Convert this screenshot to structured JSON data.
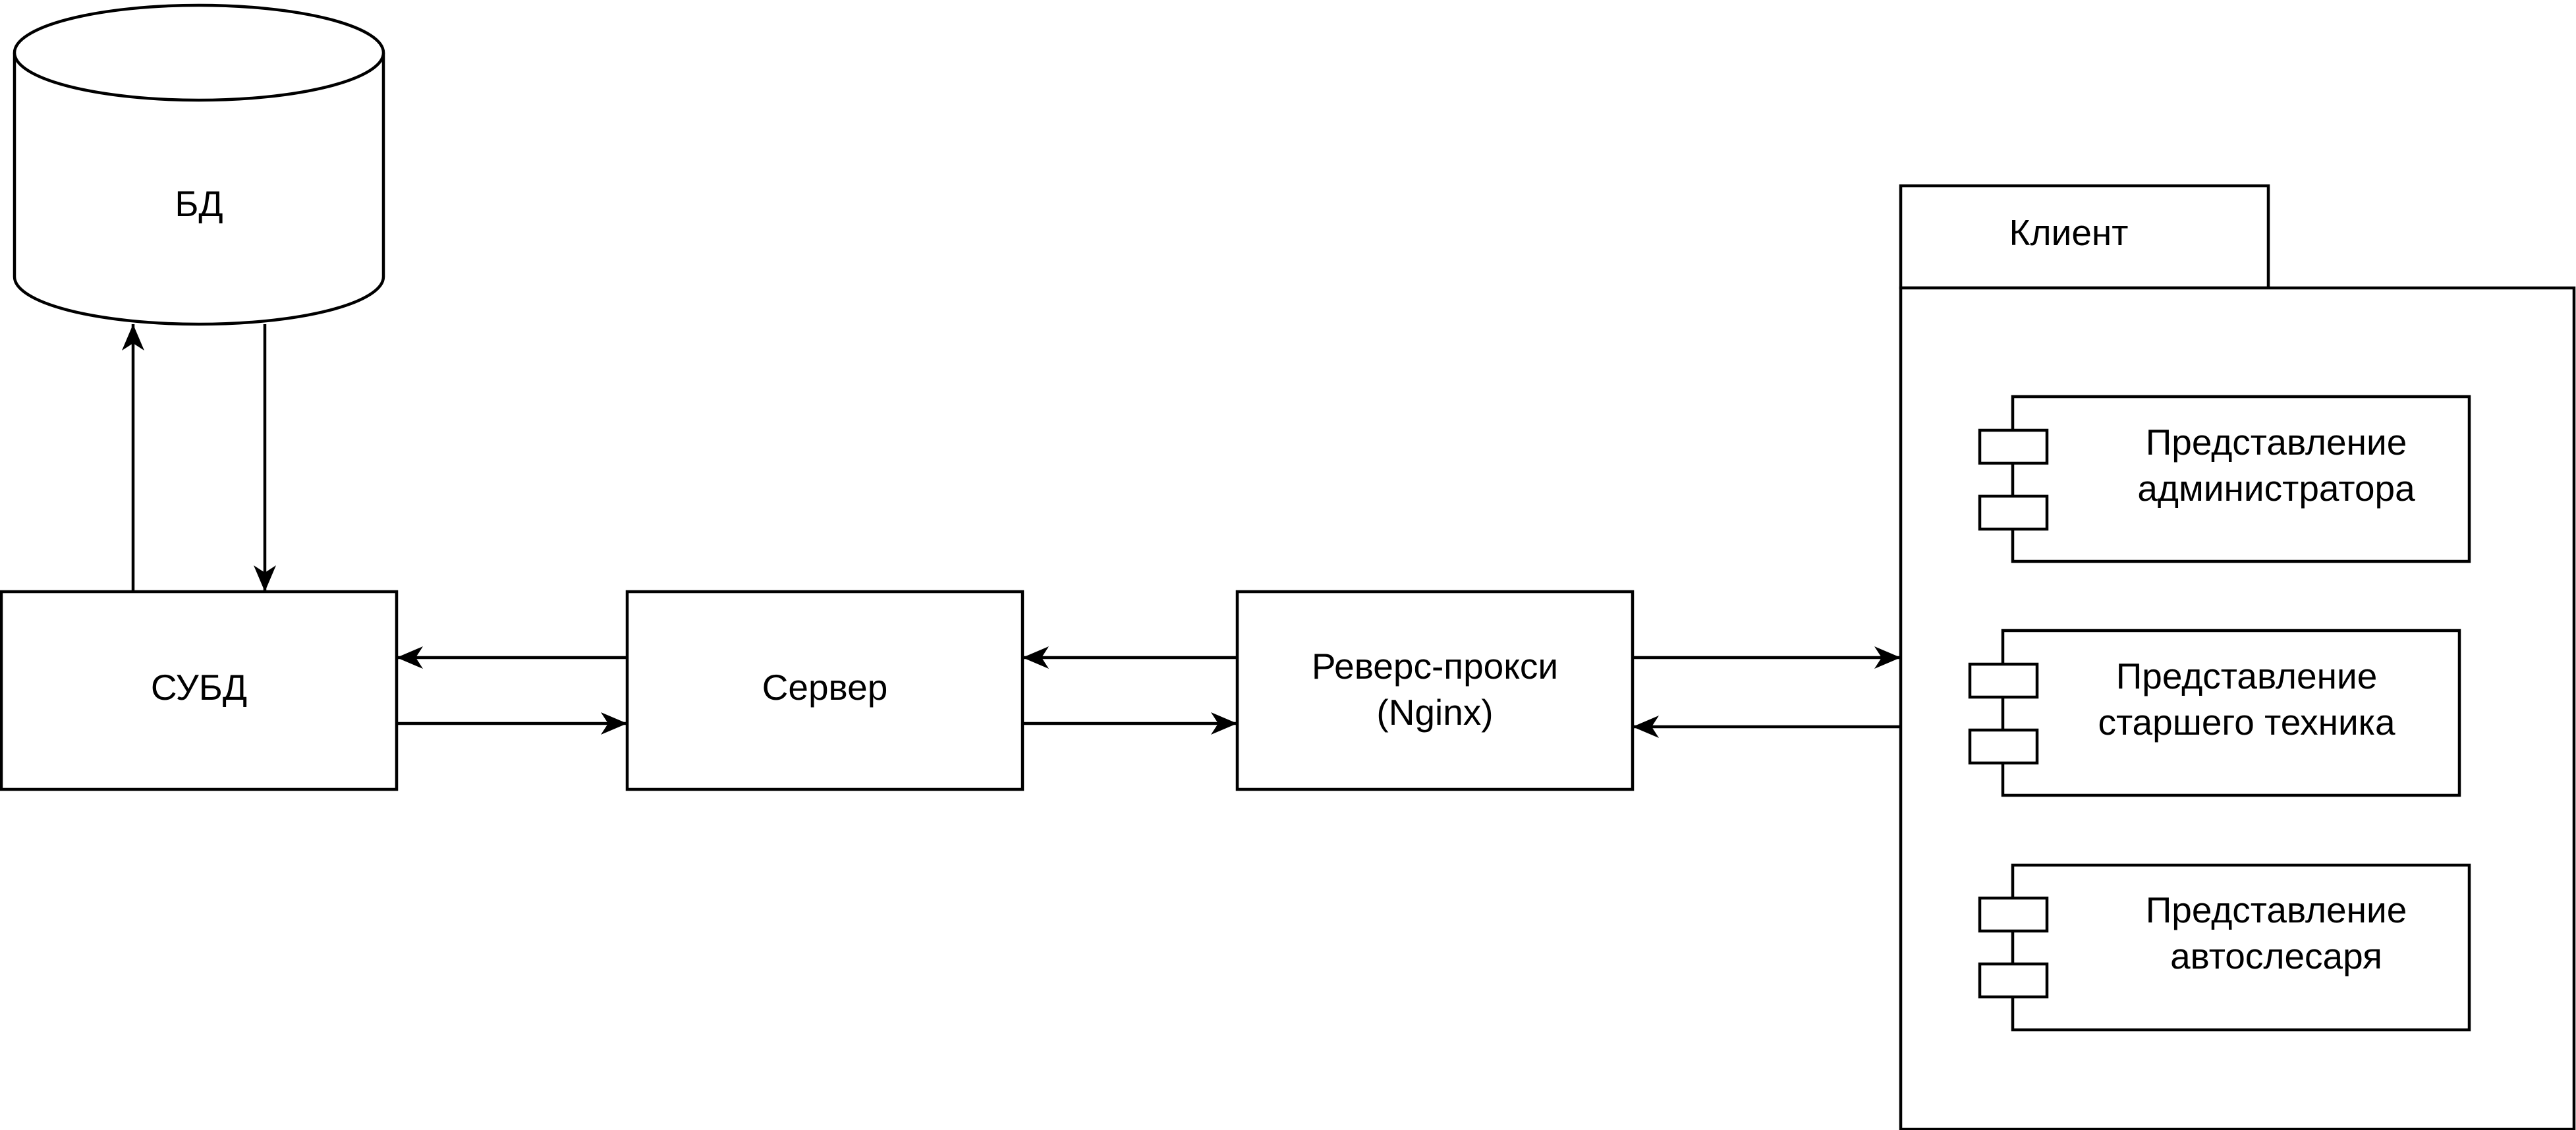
{
  "nodes": {
    "db": {
      "label": "БД"
    },
    "dbms": {
      "label": "СУБД"
    },
    "server": {
      "label": "Сервер"
    },
    "proxy": {
      "line1": "Реверс-прокси",
      "line2": "(Nginx)"
    },
    "client": {
      "label": "Клиент",
      "components": [
        {
          "line1": "Представление",
          "line2": "администратора"
        },
        {
          "line1": "Представление",
          "line2": "старшего техника"
        },
        {
          "line1": "Представление",
          "line2": "автослесаря"
        }
      ]
    }
  },
  "edges": [
    {
      "from": "dbms",
      "to": "db"
    },
    {
      "from": "db",
      "to": "dbms"
    },
    {
      "from": "server",
      "to": "dbms"
    },
    {
      "from": "dbms",
      "to": "server"
    },
    {
      "from": "proxy",
      "to": "server"
    },
    {
      "from": "server",
      "to": "proxy"
    },
    {
      "from": "proxy",
      "to": "client"
    },
    {
      "from": "client",
      "to": "proxy"
    }
  ],
  "colors": {
    "stroke": "#000000",
    "fill": "#ffffff"
  }
}
